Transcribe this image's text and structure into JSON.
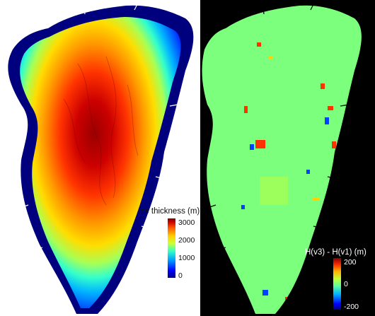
{
  "left_map": {
    "colorbar": {
      "title": "ice thickness (m)",
      "ticks": [
        "3000",
        "2000",
        "1000",
        "0"
      ],
      "range": [
        0,
        3000
      ],
      "colormap": "jet"
    }
  },
  "right_map": {
    "colorbar": {
      "title": "H(v3) - H(v1) (m)",
      "ticks": [
        "200",
        "0",
        "-200"
      ],
      "range": [
        -200,
        200
      ],
      "colormap": "jet"
    }
  },
  "colors": {
    "land_diff_background": "#7cff7c",
    "ocean_left": "#ffffff",
    "ocean_right": "#000000"
  }
}
